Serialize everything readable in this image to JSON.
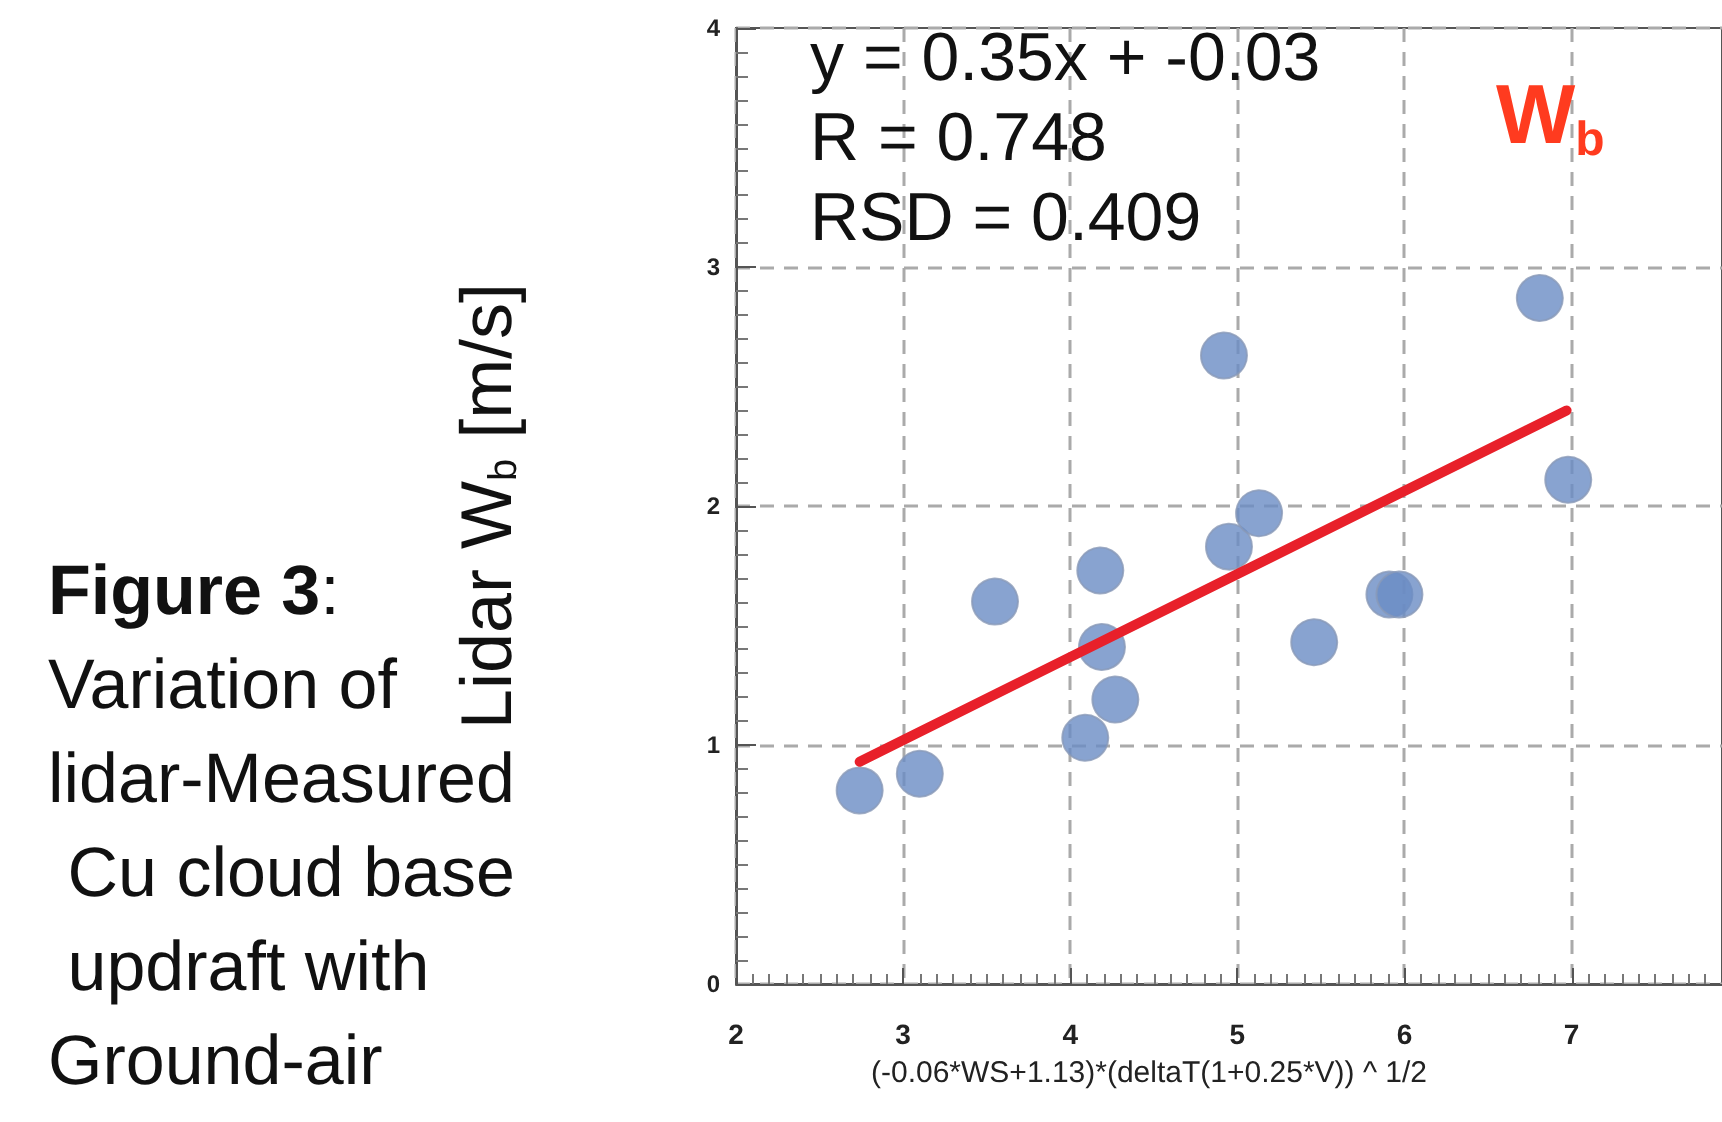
{
  "chart_data": {
    "type": "scatter",
    "xlabel": "(-0.06*WS+1.13)*(deltaT(1+0.25*V)) ^ 1/2",
    "ylabel": "Lidar W$_{b}$ [m/s]",
    "annotations": [
      "y = 0.35x + -0.03",
      "R = 0.748",
      "RSD = 0.409",
      "W$_{b}$",
      "Figure 3: Variation of lidar-Measured Cu cloud base updraft with Ground-air"
    ],
    "series": [
      {
        "color": "#6a8cc4",
        "x": [
          2.74,
          3.1,
          3.55,
          4.18,
          4.19,
          4.27,
          4.09,
          4.92,
          4.95,
          5.13,
          5.46,
          5.91,
          5.97,
          6.81,
          6.98
        ],
        "values": [
          0.81,
          0.88,
          1.6,
          1.73,
          1.41,
          1.19,
          1.03,
          2.63,
          1.83,
          1.97,
          1.43,
          1.63,
          1.63,
          2.87,
          2.11
        ]
      },
      {
        "type": "line",
        "marker": "none",
        "color": "#e8202a",
        "x": [
          2.74,
          6.97
        ],
        "values": [
          0.93,
          2.4
        ]
      }
    ],
    "xlim": [
      2,
      7.9
    ],
    "xticks": [
      2,
      3,
      4,
      5,
      6,
      7
    ],
    "ylim": [
      0,
      4
    ],
    "yticks": [
      0,
      1,
      2,
      3,
      4
    ],
    "grid": true,
    "marker": "circle"
  }
}
